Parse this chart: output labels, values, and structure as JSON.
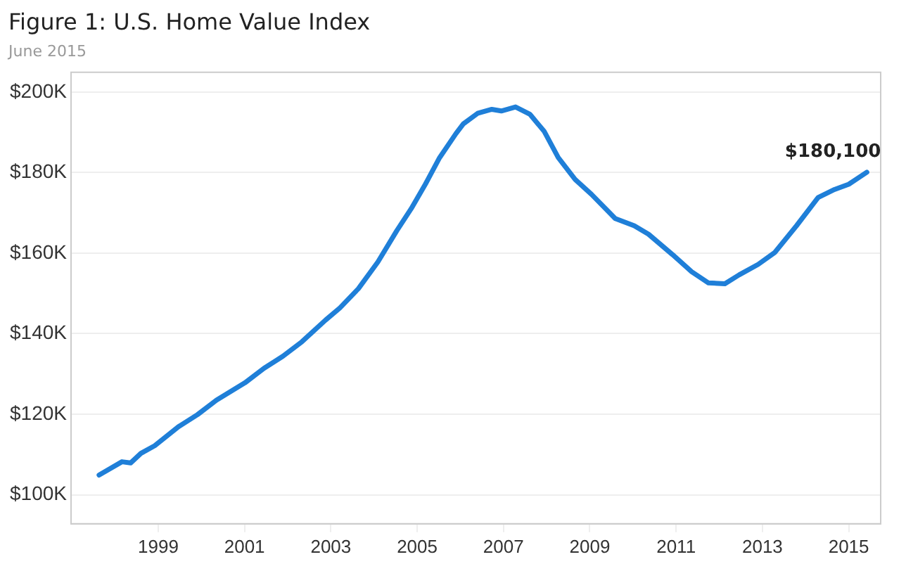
{
  "chart_data": {
    "type": "line",
    "title": "Figure 1: U.S. Home Value Index",
    "subtitle": "June 2015",
    "x": [
      1997.63,
      1998.16,
      1998.36,
      1998.6,
      1998.92,
      1999.47,
      1999.91,
      2000.35,
      2001.01,
      2001.45,
      2001.89,
      2002.33,
      2002.88,
      2003.21,
      2003.64,
      2004.09,
      2004.53,
      2004.86,
      2005.19,
      2005.52,
      2005.9,
      2006.07,
      2006.4,
      2006.73,
      2006.95,
      2007.28,
      2007.61,
      2007.94,
      2008.27,
      2008.66,
      2009.04,
      2009.59,
      2010.03,
      2010.36,
      2010.92,
      2011.36,
      2011.75,
      2012.13,
      2012.46,
      2012.9,
      2013.29,
      2013.79,
      2014.29,
      2014.67,
      2015.0,
      2015.42
    ],
    "series": [
      {
        "color": "#1f7fd8",
        "values": [
          104900,
          108200,
          107900,
          110300,
          112200,
          116900,
          119900,
          123500,
          127800,
          131400,
          134400,
          138000,
          143400,
          146400,
          151200,
          157800,
          165600,
          171000,
          177100,
          183700,
          189700,
          192100,
          194700,
          195700,
          195300,
          196300,
          194500,
          190300,
          183700,
          178300,
          174600,
          168600,
          166800,
          164700,
          159600,
          155400,
          152600,
          152400,
          154600,
          157200,
          160200,
          166800,
          173800,
          175800,
          177100,
          180100
        ]
      }
    ],
    "xlim": [
      1996.98,
      2015.74
    ],
    "xticks": [
      1999,
      2001,
      2003,
      2005,
      2007,
      2009,
      2011,
      2013,
      2015
    ],
    "ylim": [
      92800,
      204900
    ],
    "yticks": [
      {
        "value": 100000,
        "label": "$100K"
      },
      {
        "value": 120000,
        "label": "$120K"
      },
      {
        "value": 140000,
        "label": "$140K"
      },
      {
        "value": 160000,
        "label": "$160K"
      },
      {
        "value": 180000,
        "label": "$180K"
      },
      {
        "value": 200000,
        "label": "$200K"
      }
    ],
    "annotations": [
      {
        "text": "$180,100",
        "x": 2015.42,
        "y": 180100
      }
    ],
    "grid": "y",
    "legend": false,
    "marker": "none",
    "line_style": "solid"
  }
}
